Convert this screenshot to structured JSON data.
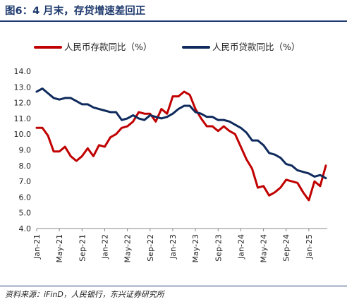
{
  "figure_title": "图6：4 月末，存贷增速差回正",
  "source_note": "资料来源：iFinD，人民银行，东兴证券研究所",
  "colors": {
    "deposit": "#c00000",
    "loan": "#0f2a5c",
    "title": "#1f3a6e",
    "axis": "#888888"
  },
  "chart_data": {
    "type": "line",
    "title": "",
    "xlabel": "",
    "ylabel": "",
    "ylim": [
      4.0,
      14.0
    ],
    "yticks": [
      "14.0",
      "13.0",
      "12.0",
      "11.0",
      "10.0",
      "9.0",
      "8.0",
      "7.0",
      "6.0",
      "5.0",
      "4.0"
    ],
    "grid": false,
    "legend_position": "top",
    "xtick_labels": [
      "Jan-21",
      "May-21",
      "Sep-21",
      "Jan-22",
      "May-22",
      "Sep-22",
      "Jan-23",
      "May-23",
      "Sep-23",
      "Jan-24",
      "May-24",
      "Sep-24",
      "Jan-25"
    ],
    "x": [
      "Jan-21",
      "Feb-21",
      "Mar-21",
      "Apr-21",
      "May-21",
      "Jun-21",
      "Jul-21",
      "Aug-21",
      "Sep-21",
      "Oct-21",
      "Nov-21",
      "Dec-21",
      "Jan-22",
      "Feb-22",
      "Mar-22",
      "Apr-22",
      "May-22",
      "Jun-22",
      "Jul-22",
      "Aug-22",
      "Sep-22",
      "Oct-22",
      "Nov-22",
      "Dec-22",
      "Jan-23",
      "Feb-23",
      "Mar-23",
      "Apr-23",
      "May-23",
      "Jun-23",
      "Jul-23",
      "Aug-23",
      "Sep-23",
      "Oct-23",
      "Nov-23",
      "Dec-23",
      "Jan-24",
      "Feb-24",
      "Mar-24",
      "Apr-24",
      "May-24",
      "Jun-24",
      "Jul-24",
      "Aug-24",
      "Sep-24",
      "Oct-24",
      "Nov-24",
      "Dec-24",
      "Jan-25",
      "Feb-25",
      "Mar-25",
      "Apr-25"
    ],
    "series": [
      {
        "name": "人民币存款同比（%）",
        "values": [
          10.4,
          10.4,
          9.9,
          8.9,
          8.9,
          9.2,
          8.6,
          8.3,
          8.6,
          9.1,
          8.6,
          9.3,
          9.2,
          9.8,
          10.0,
          10.4,
          10.5,
          10.8,
          11.4,
          11.3,
          11.3,
          10.8,
          11.6,
          11.3,
          12.4,
          12.4,
          12.7,
          12.5,
          11.6,
          11.0,
          10.5,
          10.5,
          10.2,
          10.5,
          10.2,
          10.0,
          9.2,
          8.4,
          7.8,
          6.6,
          6.7,
          6.1,
          6.3,
          6.6,
          7.1,
          7.0,
          6.9,
          6.3,
          5.8,
          7.0,
          6.7,
          8.0
        ]
      },
      {
        "name": "人民币贷款同比（%）",
        "values": [
          12.7,
          12.9,
          12.6,
          12.3,
          12.2,
          12.3,
          12.3,
          12.1,
          11.9,
          11.9,
          11.7,
          11.6,
          11.5,
          11.4,
          11.4,
          10.9,
          11.0,
          11.2,
          11.0,
          10.9,
          11.2,
          11.1,
          11.0,
          11.1,
          11.3,
          11.6,
          11.8,
          11.8,
          11.4,
          11.3,
          11.1,
          11.1,
          10.9,
          10.9,
          10.8,
          10.6,
          10.4,
          10.1,
          9.6,
          9.6,
          9.3,
          8.8,
          8.7,
          8.5,
          8.1,
          8.0,
          7.7,
          7.6,
          7.5,
          7.3,
          7.4,
          7.2
        ]
      }
    ]
  }
}
